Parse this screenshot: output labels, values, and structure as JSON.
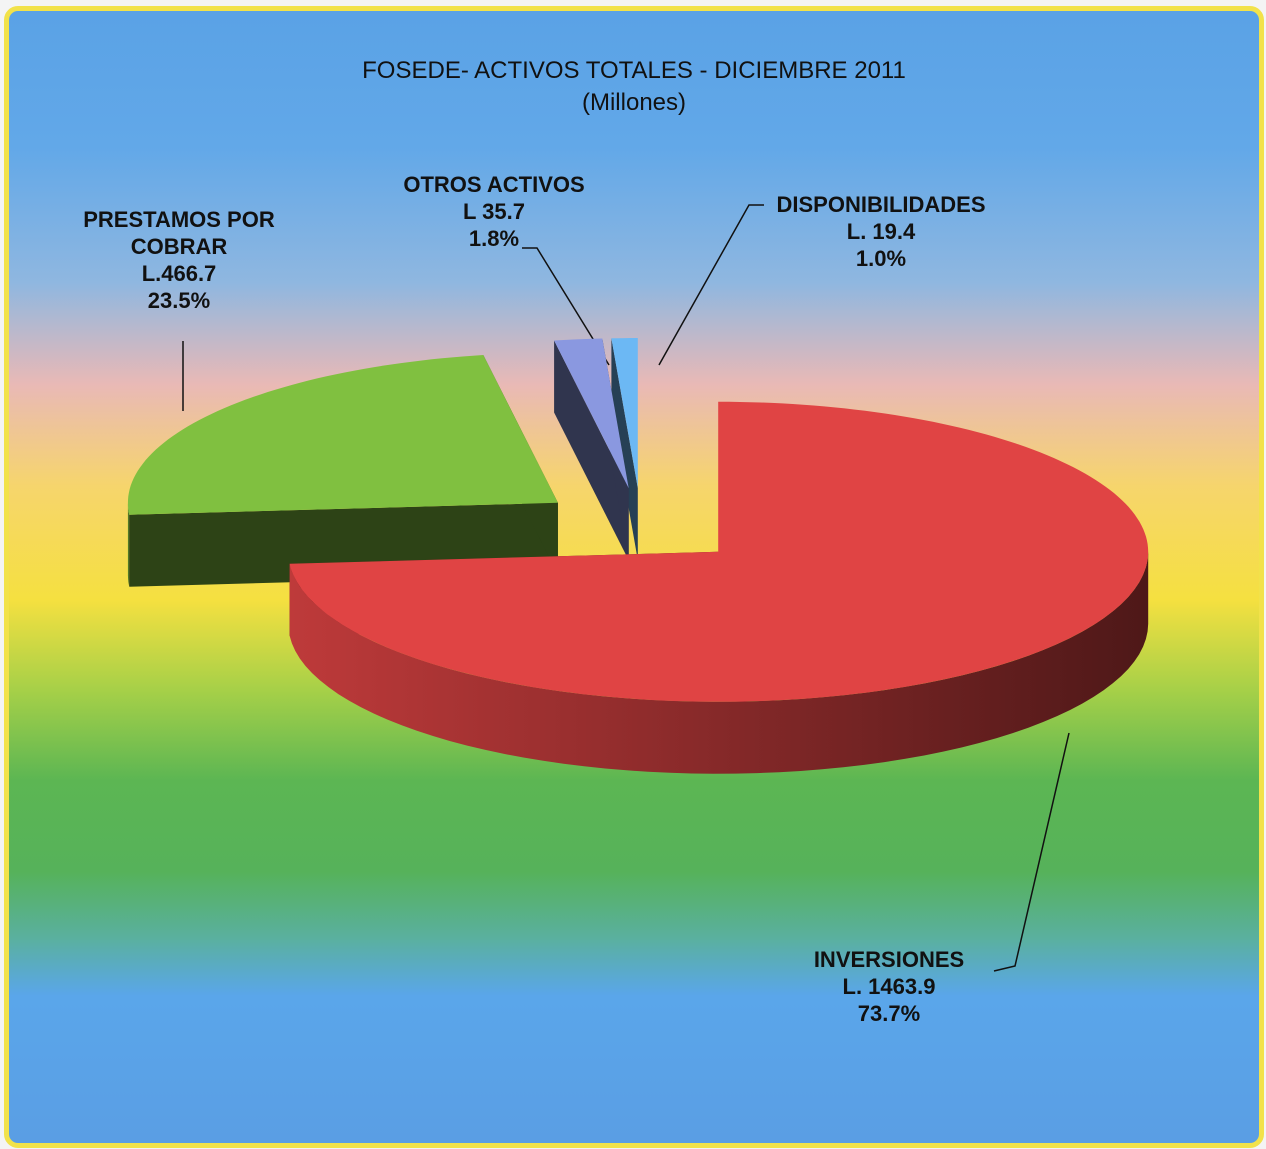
{
  "chart_data": {
    "type": "pie3d",
    "title": "FOSEDE- ACTIVOS TOTALES  -  DICIEMBRE 2011",
    "subtitle": "(Millones)",
    "categories": [
      "INVERSIONES",
      "PRESTAMOS POR COBRAR",
      "OTROS ACTIVOS",
      "DISPONIBILIDADES"
    ],
    "values": [
      1463.9,
      466.7,
      35.7,
      19.4
    ],
    "value_labels": [
      "L. 1463.9",
      "L.466.7",
      "L 35.7",
      "L. 19.4"
    ],
    "percents": [
      73.7,
      23.5,
      1.8,
      1.0
    ],
    "percent_labels": [
      "73.7%",
      "23.5%",
      "1.8%",
      "1.0%"
    ],
    "colors": [
      "#e04444",
      "#80c040",
      "#8a98e0",
      "#6cb8f4"
    ]
  }
}
